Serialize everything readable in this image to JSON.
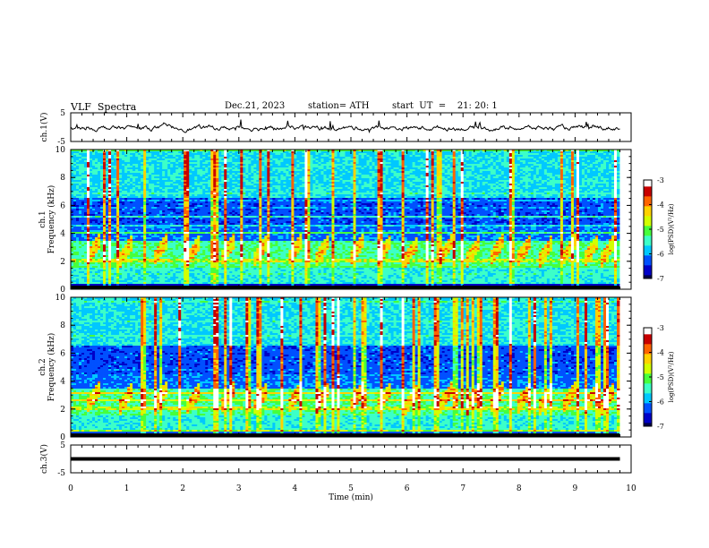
{
  "header": {
    "title": "VLF  Spectra",
    "date": "Dec.21, 2023",
    "station": "station= ATH",
    "start": "start  UT  =    21: 20: 1"
  },
  "chart_data": [
    {
      "type": "line",
      "ylabel": "ch.1(V)",
      "yticks": [
        "5",
        "-5"
      ],
      "ylim": [
        -5,
        5
      ],
      "xlim": [
        0,
        10
      ],
      "note": "noisy waveform near 0 V, amplitude ~1 V",
      "data_end_min": 9.8
    },
    {
      "type": "heatmap",
      "ylabel": [
        "ch.1",
        "Frequency  (kHz)"
      ],
      "yticks": [
        "10",
        "8",
        "6",
        "4",
        "2",
        "0"
      ],
      "ylim": [
        0,
        10
      ],
      "xlim": [
        0,
        10
      ],
      "colorbar": {
        "label": "log(PSD)(V²/Hz)",
        "ticks": [
          "-3",
          "-4",
          "-5",
          "-6",
          "-7"
        ],
        "range": [
          -7,
          -3
        ]
      },
      "chorus_element_times_min": [
        0.5,
        1.1,
        1.7,
        2.3,
        2.9,
        3.5,
        4.1,
        4.6,
        5.2,
        5.7,
        6.2,
        6.8,
        7.3,
        7.7,
        8.2,
        8.6,
        9.0,
        9.4,
        9.7
      ],
      "band_khz": [
        1.8,
        3.3
      ]
    },
    {
      "type": "heatmap",
      "ylabel": [
        "ch.2",
        "Frequency  (kHz)"
      ],
      "yticks": [
        "10",
        "8",
        "6",
        "4",
        "2",
        "0"
      ],
      "ylim": [
        0,
        10
      ],
      "xlim": [
        0,
        10
      ],
      "colorbar": {
        "label": "log(PSD)(V²/Hz)",
        "ticks": [
          "-3",
          "-4",
          "-5",
          "-6",
          "-7"
        ],
        "range": [
          -7,
          -3
        ]
      },
      "chorus_element_times_min": [
        0.5,
        1.1,
        1.7,
        2.3,
        2.9,
        3.5,
        4.1,
        4.6,
        5.2,
        5.7,
        6.2,
        6.8,
        7.3,
        7.7,
        8.2,
        8.6,
        9.0,
        9.4,
        9.7
      ],
      "band_khz": [
        1.8,
        3.3
      ]
    },
    {
      "type": "line",
      "ylabel": "ch.3(V)",
      "yticks": [
        "5",
        "-5"
      ],
      "ylim": [
        -5,
        5
      ],
      "xlim": [
        0,
        10
      ],
      "note": "flat thick trace near 0 V",
      "data_end_min": 9.8
    }
  ],
  "xaxis": {
    "label": "Time  (min)",
    "ticks": [
      "0",
      "1",
      "2",
      "3",
      "4",
      "5",
      "6",
      "7",
      "8",
      "9",
      "10"
    ]
  },
  "colors": {
    "cmap": [
      "#00004a",
      "#0000c8",
      "#0050ff",
      "#00c8ff",
      "#3cffc8",
      "#46ff3c",
      "#d2ff00",
      "#ffd200",
      "#ff6400",
      "#c80000",
      "#ffffff"
    ]
  }
}
